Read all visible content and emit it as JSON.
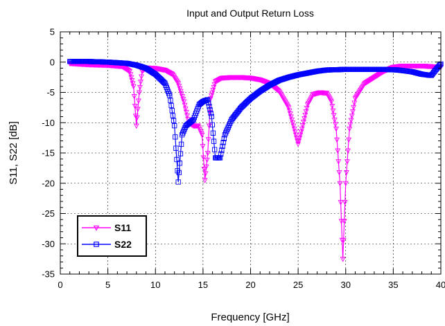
{
  "chart_data": {
    "type": "line",
    "title": "Input and Output Return Loss",
    "xlabel": "Frequency [GHz]",
    "ylabel": "S11, S22 [dB]",
    "xlim": [
      0,
      40
    ],
    "ylim": [
      -35,
      5
    ],
    "x_ticks": [
      0,
      5,
      10,
      15,
      20,
      25,
      30,
      35,
      40
    ],
    "y_ticks": [
      5,
      0,
      -5,
      -10,
      -15,
      -20,
      -25,
      -30,
      -35
    ],
    "x_tick_labels": [
      "0",
      "5",
      "10",
      "15",
      "20",
      "25",
      "30",
      "35",
      "40"
    ],
    "y_tick_labels": [
      "5",
      "0",
      "-5",
      "-10",
      "-15",
      "-20",
      "-25",
      "-30",
      "-35"
    ],
    "grid": true,
    "legend_position": "bottom-left",
    "series": [
      {
        "name": "S11",
        "color": "#ff00ff",
        "marker": "triangle-down",
        "points": [
          [
            1,
            -0.2
          ],
          [
            3,
            -0.4
          ],
          [
            5,
            -0.5
          ],
          [
            6.5,
            -0.7
          ],
          [
            7.3,
            -1.5
          ],
          [
            7.7,
            -4
          ],
          [
            8,
            -10.5
          ],
          [
            8.3,
            -5
          ],
          [
            8.6,
            -1.5
          ],
          [
            9,
            -0.9
          ],
          [
            10,
            -1.0
          ],
          [
            11,
            -1.3
          ],
          [
            11.8,
            -2.0
          ],
          [
            12.4,
            -3.5
          ],
          [
            13,
            -6.5
          ],
          [
            13.5,
            -10
          ],
          [
            14,
            -10.5
          ],
          [
            14.5,
            -10.5
          ],
          [
            14.9,
            -12
          ],
          [
            15.2,
            -19.5
          ],
          [
            15.5,
            -15
          ],
          [
            15.8,
            -6
          ],
          [
            16.3,
            -3.2
          ],
          [
            17,
            -2.6
          ],
          [
            18,
            -2.5
          ],
          [
            19,
            -2.5
          ],
          [
            20,
            -2.6
          ],
          [
            21,
            -2.9
          ],
          [
            22,
            -3.5
          ],
          [
            23,
            -4.8
          ],
          [
            24,
            -7.5
          ],
          [
            24.6,
            -11
          ],
          [
            25,
            -13.5
          ],
          [
            25.4,
            -11
          ],
          [
            26,
            -7
          ],
          [
            26.6,
            -5.3
          ],
          [
            27.3,
            -5.0
          ],
          [
            28,
            -5.1
          ],
          [
            28.5,
            -6.5
          ],
          [
            29,
            -11
          ],
          [
            29.4,
            -20
          ],
          [
            29.7,
            -32.5
          ],
          [
            30,
            -20
          ],
          [
            30.4,
            -11
          ],
          [
            31,
            -6
          ],
          [
            32,
            -3.5
          ],
          [
            33,
            -2.5
          ],
          [
            34,
            -1.5
          ],
          [
            35,
            -0.8
          ],
          [
            36,
            -0.6
          ],
          [
            37,
            -0.6
          ],
          [
            38,
            -0.6
          ],
          [
            39,
            -0.7
          ],
          [
            40,
            -0.8
          ]
        ]
      },
      {
        "name": "S22",
        "color": "#0000ff",
        "marker": "square",
        "points": [
          [
            1,
            0.1
          ],
          [
            3,
            0.1
          ],
          [
            5,
            0.0
          ],
          [
            7,
            -0.2
          ],
          [
            8,
            -0.5
          ],
          [
            9,
            -1.0
          ],
          [
            10,
            -2.0
          ],
          [
            11,
            -3.5
          ],
          [
            11.5,
            -5.5
          ],
          [
            12,
            -10.5
          ],
          [
            12.4,
            -19.8
          ],
          [
            12.8,
            -12
          ],
          [
            13.2,
            -10.5
          ],
          [
            13.6,
            -10
          ],
          [
            14,
            -9.5
          ],
          [
            14.6,
            -7
          ],
          [
            15,
            -6.5
          ],
          [
            15.5,
            -6.2
          ],
          [
            15.9,
            -9
          ],
          [
            16.3,
            -15.8
          ],
          [
            16.8,
            -15.8
          ],
          [
            17.3,
            -12
          ],
          [
            18,
            -9.5
          ],
          [
            19,
            -7.5
          ],
          [
            20,
            -6
          ],
          [
            21,
            -4.8
          ],
          [
            22,
            -3.8
          ],
          [
            23,
            -3.0
          ],
          [
            24,
            -2.5
          ],
          [
            25,
            -2.1
          ],
          [
            26,
            -1.8
          ],
          [
            27,
            -1.5
          ],
          [
            28,
            -1.3
          ],
          [
            30,
            -1.2
          ],
          [
            32,
            -1.2
          ],
          [
            34,
            -1.2
          ],
          [
            35.5,
            -1.3
          ],
          [
            37,
            -1.6
          ],
          [
            38,
            -2.0
          ],
          [
            39,
            -2.2
          ],
          [
            39.5,
            -1.2
          ],
          [
            40,
            -0.3
          ]
        ]
      }
    ]
  }
}
